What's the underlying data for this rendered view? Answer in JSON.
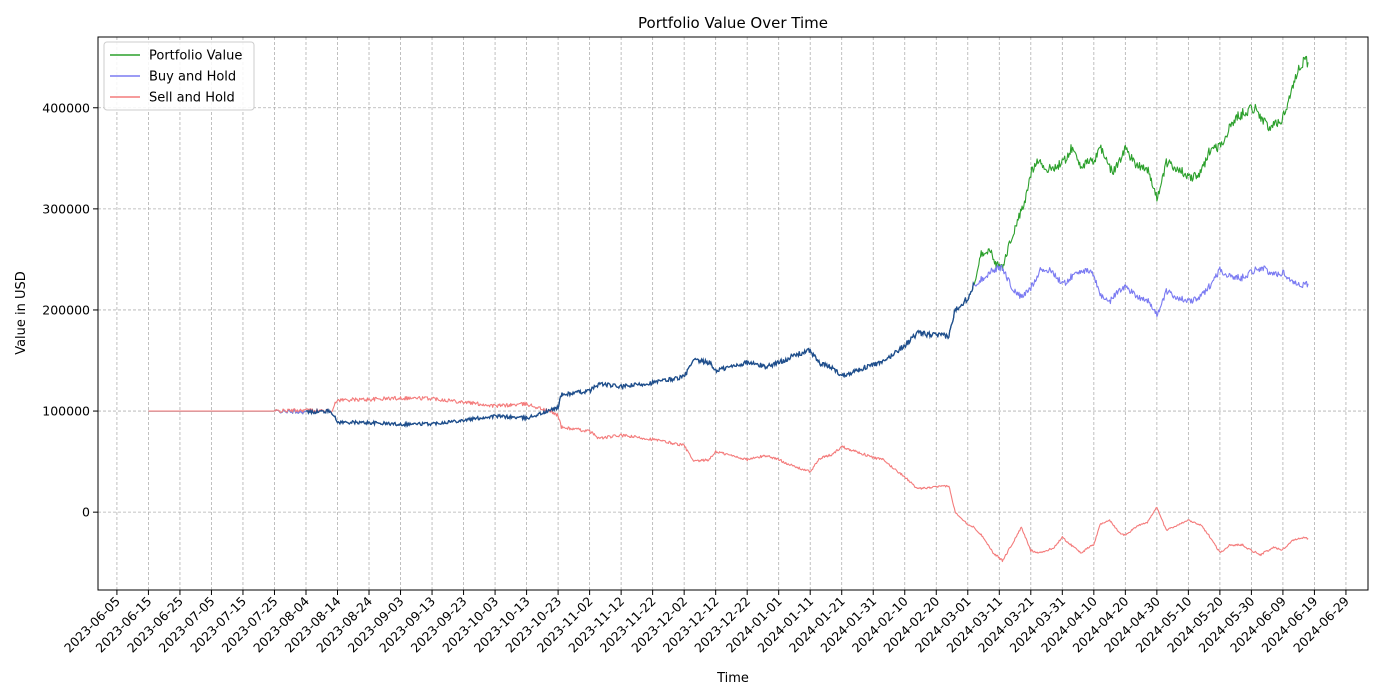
{
  "chart_data": {
    "type": "line",
    "title": "Portfolio Value Over Time",
    "xlabel": "Time",
    "ylabel": "Value in USD",
    "grid": true,
    "legend_position": "top-left",
    "xlim": [
      "2023-05-30",
      "2024-07-06"
    ],
    "ylim": [
      -77000,
      470000
    ],
    "x_ticks": [
      "2023-06-05",
      "2023-06-15",
      "2023-06-25",
      "2023-07-05",
      "2023-07-15",
      "2023-07-25",
      "2023-08-04",
      "2023-08-14",
      "2023-08-24",
      "2023-09-03",
      "2023-09-13",
      "2023-09-23",
      "2023-10-03",
      "2023-10-13",
      "2023-10-23",
      "2023-11-02",
      "2023-11-12",
      "2023-11-22",
      "2023-12-02",
      "2023-12-12",
      "2023-12-22",
      "2024-01-01",
      "2024-01-11",
      "2024-01-21",
      "2024-01-31",
      "2024-02-10",
      "2024-02-20",
      "2024-03-01",
      "2024-03-11",
      "2024-03-21",
      "2024-03-31",
      "2024-04-10",
      "2024-04-20",
      "2024-04-30",
      "2024-05-10",
      "2024-05-20",
      "2024-05-30",
      "2024-06-09",
      "2024-06-19",
      "2024-06-29"
    ],
    "y_ticks": [
      0,
      100000,
      200000,
      300000,
      400000
    ],
    "y_tick_labels": [
      "0",
      "100000",
      "200000",
      "300000",
      "400000"
    ],
    "series": [
      {
        "name": "Portfolio Value",
        "color": "#2ca02c",
        "points": [
          [
            "2023-06-15",
            100000
          ],
          [
            "2023-07-25",
            100000
          ],
          [
            "2023-08-04",
            99000
          ],
          [
            "2023-08-12",
            100000
          ],
          [
            "2023-08-14",
            89000
          ],
          [
            "2023-08-24",
            88500
          ],
          [
            "2023-09-03",
            87000
          ],
          [
            "2023-09-13",
            87500
          ],
          [
            "2023-09-23",
            91000
          ],
          [
            "2023-10-03",
            95000
          ],
          [
            "2023-10-13",
            93000
          ],
          [
            "2023-10-20",
            100000
          ],
          [
            "2023-10-23",
            104000
          ],
          [
            "2023-10-24",
            116000
          ],
          [
            "2023-11-02",
            120000
          ],
          [
            "2023-11-05",
            127000
          ],
          [
            "2023-11-12",
            124000
          ],
          [
            "2023-11-22",
            128000
          ],
          [
            "2023-12-02",
            134000
          ],
          [
            "2023-12-05",
            150000
          ],
          [
            "2023-12-10",
            148000
          ],
          [
            "2023-12-12",
            140000
          ],
          [
            "2023-12-22",
            148000
          ],
          [
            "2023-12-28",
            144000
          ],
          [
            "2024-01-01",
            148000
          ],
          [
            "2024-01-06",
            155000
          ],
          [
            "2024-01-11",
            160000
          ],
          [
            "2024-01-14",
            147000
          ],
          [
            "2024-01-18",
            143000
          ],
          [
            "2024-01-21",
            135000
          ],
          [
            "2024-01-31",
            146000
          ],
          [
            "2024-02-03",
            148000
          ],
          [
            "2024-02-07",
            158000
          ],
          [
            "2024-02-10",
            165000
          ],
          [
            "2024-02-14",
            177000
          ],
          [
            "2024-02-20",
            175000
          ],
          [
            "2024-02-24",
            174000
          ],
          [
            "2024-02-26",
            200000
          ],
          [
            "2024-03-01",
            212000
          ],
          [
            "2024-03-03",
            225000
          ],
          [
            "2024-03-05",
            255000
          ],
          [
            "2024-03-08",
            260000
          ],
          [
            "2024-03-10",
            245000
          ],
          [
            "2024-03-12",
            242000
          ],
          [
            "2024-03-14",
            263000
          ],
          [
            "2024-03-17",
            290000
          ],
          [
            "2024-03-19",
            305000
          ],
          [
            "2024-03-21",
            335000
          ],
          [
            "2024-03-23",
            350000
          ],
          [
            "2024-03-26",
            338000
          ],
          [
            "2024-03-31",
            345000
          ],
          [
            "2024-04-03",
            360000
          ],
          [
            "2024-04-06",
            343000
          ],
          [
            "2024-04-10",
            347000
          ],
          [
            "2024-04-12",
            362000
          ],
          [
            "2024-04-16",
            335000
          ],
          [
            "2024-04-20",
            360000
          ],
          [
            "2024-04-23",
            345000
          ],
          [
            "2024-04-27",
            340000
          ],
          [
            "2024-04-30",
            310000
          ],
          [
            "2024-05-03",
            345000
          ],
          [
            "2024-05-07",
            340000
          ],
          [
            "2024-05-10",
            330000
          ],
          [
            "2024-05-14",
            335000
          ],
          [
            "2024-05-17",
            360000
          ],
          [
            "2024-05-20",
            362000
          ],
          [
            "2024-05-25",
            390000
          ],
          [
            "2024-05-30",
            400000
          ],
          [
            "2024-06-01",
            398000
          ],
          [
            "2024-06-03",
            385000
          ],
          [
            "2024-06-05",
            380000
          ],
          [
            "2024-06-09",
            390000
          ],
          [
            "2024-06-12",
            420000
          ],
          [
            "2024-06-14",
            440000
          ],
          [
            "2024-06-16",
            448000
          ],
          [
            "2024-06-17",
            445000
          ]
        ]
      },
      {
        "name": "Buy and Hold",
        "color": "#7b7bf2",
        "points": [
          [
            "2023-06-15",
            100000
          ],
          [
            "2023-07-25",
            100000
          ],
          [
            "2023-08-04",
            99000
          ],
          [
            "2023-08-12",
            100000
          ],
          [
            "2023-08-14",
            89000
          ],
          [
            "2023-08-24",
            88500
          ],
          [
            "2023-09-03",
            87000
          ],
          [
            "2023-09-13",
            87500
          ],
          [
            "2023-09-23",
            91000
          ],
          [
            "2023-10-03",
            95000
          ],
          [
            "2023-10-13",
            93000
          ],
          [
            "2023-10-20",
            100000
          ],
          [
            "2023-10-23",
            104000
          ],
          [
            "2023-10-24",
            116000
          ],
          [
            "2023-11-02",
            120000
          ],
          [
            "2023-11-05",
            127000
          ],
          [
            "2023-11-12",
            124000
          ],
          [
            "2023-11-22",
            128000
          ],
          [
            "2023-12-02",
            134000
          ],
          [
            "2023-12-05",
            150000
          ],
          [
            "2023-12-10",
            148000
          ],
          [
            "2023-12-12",
            140000
          ],
          [
            "2023-12-22",
            148000
          ],
          [
            "2023-12-28",
            144000
          ],
          [
            "2024-01-01",
            148000
          ],
          [
            "2024-01-06",
            155000
          ],
          [
            "2024-01-11",
            160000
          ],
          [
            "2024-01-14",
            147000
          ],
          [
            "2024-01-18",
            143000
          ],
          [
            "2024-01-21",
            135000
          ],
          [
            "2024-01-31",
            146000
          ],
          [
            "2024-02-03",
            148000
          ],
          [
            "2024-02-07",
            158000
          ],
          [
            "2024-02-10",
            165000
          ],
          [
            "2024-02-14",
            177000
          ],
          [
            "2024-02-20",
            175000
          ],
          [
            "2024-02-24",
            174000
          ],
          [
            "2024-02-26",
            200000
          ],
          [
            "2024-03-01",
            212000
          ],
          [
            "2024-03-03",
            225000
          ],
          [
            "2024-03-06",
            232000
          ],
          [
            "2024-03-09",
            240000
          ],
          [
            "2024-03-12",
            242000
          ],
          [
            "2024-03-15",
            222000
          ],
          [
            "2024-03-18",
            212000
          ],
          [
            "2024-03-21",
            222000
          ],
          [
            "2024-03-24",
            240000
          ],
          [
            "2024-03-28",
            238000
          ],
          [
            "2024-03-31",
            225000
          ],
          [
            "2024-04-03",
            233000
          ],
          [
            "2024-04-06",
            240000
          ],
          [
            "2024-04-10",
            235000
          ],
          [
            "2024-04-12",
            215000
          ],
          [
            "2024-04-15",
            208000
          ],
          [
            "2024-04-18",
            220000
          ],
          [
            "2024-04-20",
            223000
          ],
          [
            "2024-04-24",
            213000
          ],
          [
            "2024-04-27",
            210000
          ],
          [
            "2024-04-30",
            195000
          ],
          [
            "2024-05-03",
            218000
          ],
          [
            "2024-05-07",
            212000
          ],
          [
            "2024-05-10",
            208000
          ],
          [
            "2024-05-14",
            213000
          ],
          [
            "2024-05-17",
            225000
          ],
          [
            "2024-05-20",
            240000
          ],
          [
            "2024-05-23",
            233000
          ],
          [
            "2024-05-27",
            232000
          ],
          [
            "2024-05-30",
            238000
          ],
          [
            "2024-06-02",
            242000
          ],
          [
            "2024-06-06",
            235000
          ],
          [
            "2024-06-09",
            237000
          ],
          [
            "2024-06-12",
            228000
          ],
          [
            "2024-06-15",
            225000
          ],
          [
            "2024-06-17",
            226000
          ]
        ]
      },
      {
        "name": "Sell and Hold",
        "color": "#f47c7c",
        "points": [
          [
            "2023-06-15",
            100000
          ],
          [
            "2023-07-25",
            100000
          ],
          [
            "2023-08-04",
            101000
          ],
          [
            "2023-08-12",
            100000
          ],
          [
            "2023-08-14",
            111000
          ],
          [
            "2023-08-24",
            111500
          ],
          [
            "2023-09-03",
            113000
          ],
          [
            "2023-09-13",
            112500
          ],
          [
            "2023-09-23",
            109000
          ],
          [
            "2023-10-03",
            105000
          ],
          [
            "2023-10-13",
            107000
          ],
          [
            "2023-10-20",
            100000
          ],
          [
            "2023-10-23",
            96000
          ],
          [
            "2023-10-24",
            84000
          ],
          [
            "2023-11-02",
            80000
          ],
          [
            "2023-11-05",
            73000
          ],
          [
            "2023-11-12",
            76000
          ],
          [
            "2023-11-22",
            72000
          ],
          [
            "2023-12-02",
            66000
          ],
          [
            "2023-12-05",
            50000
          ],
          [
            "2023-12-10",
            52000
          ],
          [
            "2023-12-12",
            60000
          ],
          [
            "2023-12-22",
            52000
          ],
          [
            "2023-12-28",
            56000
          ],
          [
            "2024-01-01",
            52000
          ],
          [
            "2024-01-06",
            45000
          ],
          [
            "2024-01-11",
            40000
          ],
          [
            "2024-01-14",
            53000
          ],
          [
            "2024-01-18",
            57000
          ],
          [
            "2024-01-21",
            65000
          ],
          [
            "2024-01-31",
            54000
          ],
          [
            "2024-02-03",
            52000
          ],
          [
            "2024-02-07",
            42000
          ],
          [
            "2024-02-10",
            35000
          ],
          [
            "2024-02-14",
            23000
          ],
          [
            "2024-02-20",
            25000
          ],
          [
            "2024-02-24",
            26000
          ],
          [
            "2024-02-26",
            0
          ],
          [
            "2024-03-01",
            -12000
          ],
          [
            "2024-03-03",
            -15000
          ],
          [
            "2024-03-06",
            -25000
          ],
          [
            "2024-03-09",
            -40000
          ],
          [
            "2024-03-12",
            -48000
          ],
          [
            "2024-03-15",
            -32000
          ],
          [
            "2024-03-18",
            -15000
          ],
          [
            "2024-03-21",
            -38000
          ],
          [
            "2024-03-24",
            -40000
          ],
          [
            "2024-03-28",
            -36000
          ],
          [
            "2024-03-31",
            -25000
          ],
          [
            "2024-04-03",
            -33000
          ],
          [
            "2024-04-06",
            -40000
          ],
          [
            "2024-04-10",
            -32000
          ],
          [
            "2024-04-12",
            -12000
          ],
          [
            "2024-04-15",
            -8000
          ],
          [
            "2024-04-18",
            -20000
          ],
          [
            "2024-04-20",
            -23000
          ],
          [
            "2024-04-24",
            -13000
          ],
          [
            "2024-04-27",
            -10000
          ],
          [
            "2024-04-30",
            5000
          ],
          [
            "2024-05-03",
            -18000
          ],
          [
            "2024-05-07",
            -12000
          ],
          [
            "2024-05-10",
            -8000
          ],
          [
            "2024-05-14",
            -13000
          ],
          [
            "2024-05-17",
            -25000
          ],
          [
            "2024-05-20",
            -40000
          ],
          [
            "2024-05-23",
            -33000
          ],
          [
            "2024-05-27",
            -32000
          ],
          [
            "2024-05-30",
            -38000
          ],
          [
            "2024-06-02",
            -42000
          ],
          [
            "2024-06-06",
            -35000
          ],
          [
            "2024-06-09",
            -37000
          ],
          [
            "2024-06-12",
            -28000
          ],
          [
            "2024-06-15",
            -25000
          ],
          [
            "2024-06-17",
            -26000
          ]
        ]
      }
    ]
  }
}
